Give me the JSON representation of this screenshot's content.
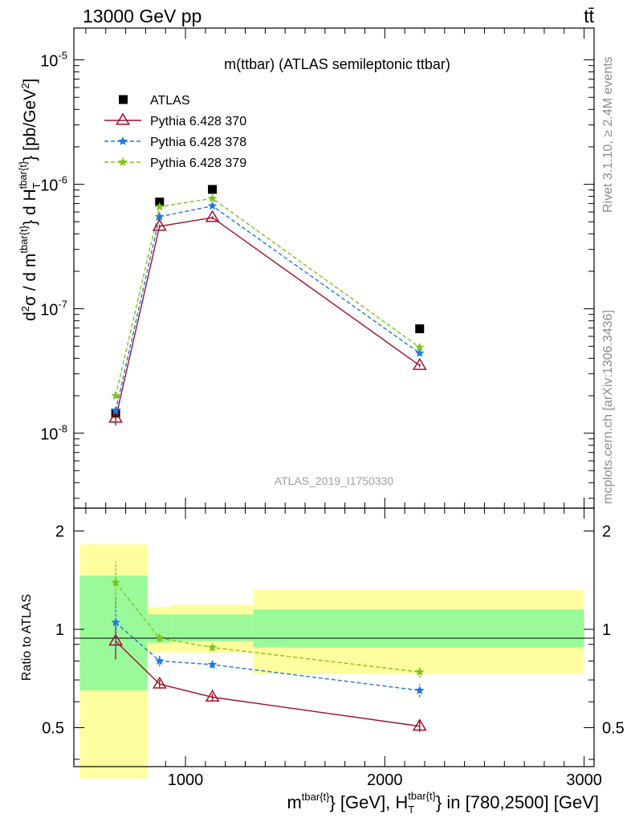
{
  "header": {
    "energy": "13000 GeV pp",
    "process": "tt̄"
  },
  "side_labels": {
    "rivet": "Rivet 3.1.10, ≥ 2.4M events",
    "source": "mcplots.cern.ch [arXiv:1306.3436]"
  },
  "chart_data": [
    {
      "type": "scatter",
      "panel": "main",
      "title": "m(ttbar) (ATLAS semileptonic ttbar)",
      "watermark": "ATLAS_2019_I1750330",
      "ylabel": "d²σ / d m^{tbar{t}} d H_T^{tbar{t}} [pb/GeV²]",
      "yscale": "log",
      "xlim": [
        440,
        3050
      ],
      "ylim": [
        2.5e-09,
        1.8e-05
      ],
      "x": [
        650,
        870,
        1135,
        2175
      ],
      "legend_position": "top-left",
      "series": [
        {
          "name": "ATLAS",
          "color": "#000000",
          "marker": "square",
          "values": [
            1.45e-08,
            7.2e-07,
            9.1e-07,
            6.9e-08
          ]
        },
        {
          "name": "Pythia 6.428 370",
          "color": "#a0102a",
          "marker": "open-triangle",
          "line": "solid",
          "values": [
            1.32e-08,
            4.6e-07,
            5.4e-07,
            3.5e-08
          ],
          "err_low": [
            1.15e-08,
            4.45e-07,
            5.25e-07,
            3.38e-08
          ],
          "err_high": [
            1.5e-08,
            4.75e-07,
            5.55e-07,
            3.62e-08
          ]
        },
        {
          "name": "Pythia 6.428 378",
          "color": "#1e78e0",
          "marker": "star",
          "line": "dashed",
          "values": [
            1.52e-08,
            5.5e-07,
            6.7e-07,
            4.4e-08
          ]
        },
        {
          "name": "Pythia 6.428 379",
          "color": "#7fc31c",
          "marker": "star",
          "line": "dashed",
          "values": [
            2e-08,
            6.6e-07,
            7.7e-07,
            4.9e-08
          ]
        }
      ]
    },
    {
      "type": "scatter",
      "panel": "ratio",
      "ylabel": "Ratio to ATLAS",
      "xlabel": "m^{tbar{t}} [GeV], H_T^{tbar{t}} in [780,2500] [GeV]",
      "ylim": [
        0.38,
        2.35
      ],
      "xlim": [
        440,
        3050
      ],
      "x_ticks": [
        "1000",
        "2000",
        "3000"
      ],
      "y_ticks": [
        "0.5",
        "1",
        "2"
      ],
      "bands": [
        {
          "xmin": 470,
          "xmax": 810,
          "green": [
            0.65,
            1.46
          ],
          "yellow": [
            0.35,
            1.82
          ]
        },
        {
          "xmin": 810,
          "xmax": 930,
          "green": [
            0.91,
            1.11
          ],
          "yellow": [
            0.85,
            1.17
          ]
        },
        {
          "xmin": 930,
          "xmax": 1340,
          "green": [
            0.92,
            1.11
          ],
          "yellow": [
            0.85,
            1.19
          ]
        },
        {
          "xmin": 1340,
          "xmax": 3000,
          "green": [
            0.88,
            1.15
          ],
          "yellow": [
            0.73,
            1.32
          ]
        }
      ],
      "series": [
        {
          "name": "Pythia 6.428 370",
          "color": "#a0102a",
          "values": [
            0.92,
            0.68,
            0.62,
            0.505
          ],
          "err": [
            0.11,
            0.02,
            0.015,
            0.02
          ]
        },
        {
          "name": "Pythia 6.428 378",
          "color": "#1e78e0",
          "values": [
            1.05,
            0.8,
            0.78,
            0.65
          ],
          "err": [
            0.2,
            0.03,
            0.02,
            0.03
          ]
        },
        {
          "name": "Pythia 6.428 379",
          "color": "#7fc31c",
          "values": [
            1.39,
            0.94,
            0.88,
            0.74
          ],
          "err": [
            0.22,
            0.03,
            0.02,
            0.03
          ]
        }
      ]
    }
  ]
}
